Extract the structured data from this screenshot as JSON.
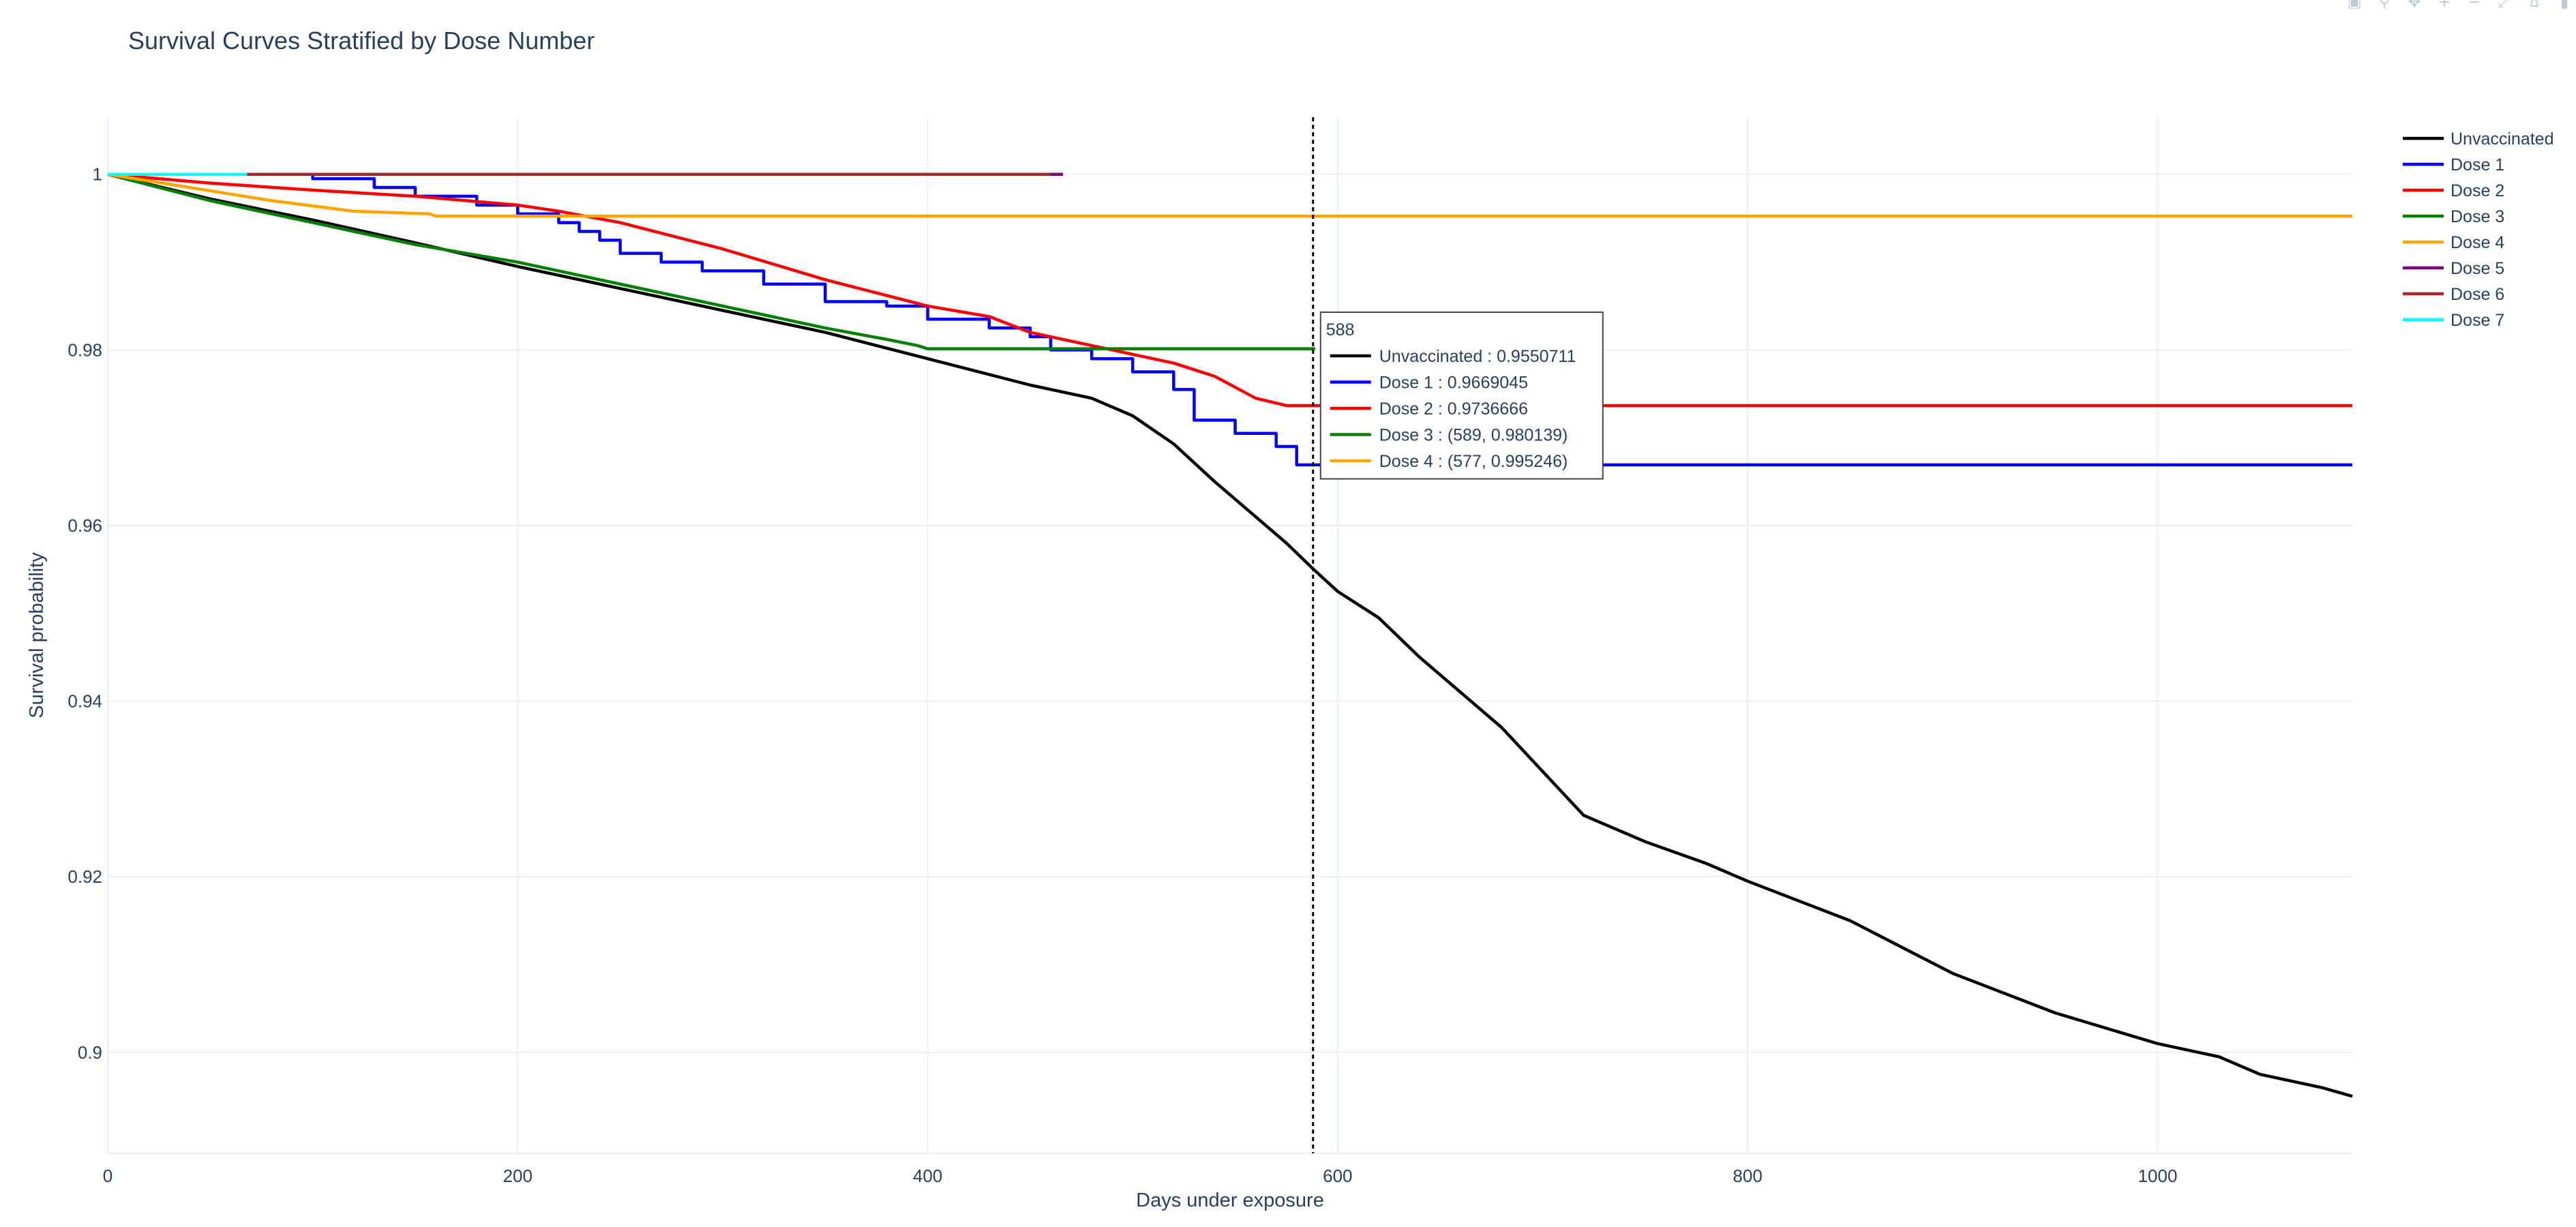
{
  "toolbar": {
    "buttons": [
      {
        "icon": "camera-icon",
        "glyph": "▣"
      },
      {
        "icon": "zoom-icon",
        "glyph": "⚲"
      },
      {
        "icon": "pan-icon",
        "glyph": "✥"
      },
      {
        "icon": "zoom-in-icon",
        "glyph": "+"
      },
      {
        "icon": "zoom-out-icon",
        "glyph": "−"
      },
      {
        "icon": "autoscale-icon",
        "glyph": "⤢"
      },
      {
        "icon": "home-icon",
        "glyph": "⌂"
      },
      {
        "icon": "plotly-logo-icon",
        "glyph": "▮"
      }
    ]
  },
  "chart_data": {
    "type": "line",
    "title": "Survival Curves Stratified by Dose Number",
    "xlabel": "Days under exposure",
    "ylabel": "Survival probability",
    "xlim": [
      0,
      1095
    ],
    "ylim": [
      0.8885,
      1.0065
    ],
    "x_ticks": [
      0,
      200,
      400,
      600,
      800,
      1000
    ],
    "y_ticks": [
      0.9,
      0.92,
      0.94,
      0.96,
      0.98,
      1
    ],
    "y_tick_labels": [
      "0.9",
      "0.92",
      "0.94",
      "0.96",
      "0.98",
      "1"
    ],
    "grid": true,
    "legend_position": "top-right",
    "series": [
      {
        "name": "Unvaccinated",
        "color": "#000000",
        "x": [
          0,
          50,
          100,
          150,
          200,
          250,
          300,
          350,
          400,
          450,
          480,
          500,
          520,
          540,
          560,
          575,
          588,
          600,
          620,
          640,
          660,
          680,
          700,
          720,
          750,
          780,
          800,
          850,
          900,
          950,
          1000,
          1030,
          1050,
          1080,
          1095
        ],
        "y": [
          1,
          0.9972,
          0.9948,
          0.9922,
          0.9895,
          0.987,
          0.9845,
          0.982,
          0.979,
          0.976,
          0.9745,
          0.9725,
          0.9693,
          0.965,
          0.961,
          0.958,
          0.9550711,
          0.9525,
          0.9495,
          0.945,
          0.941,
          0.937,
          0.932,
          0.927,
          0.924,
          0.9215,
          0.9195,
          0.915,
          0.909,
          0.9045,
          0.901,
          0.8995,
          0.8975,
          0.896,
          0.895
        ]
      },
      {
        "name": "Dose 1",
        "color": "#0000ff",
        "step": true,
        "x": [
          0,
          70,
          100,
          130,
          150,
          180,
          200,
          220,
          230,
          240,
          250,
          270,
          290,
          320,
          350,
          380,
          400,
          430,
          450,
          460,
          480,
          500,
          520,
          530,
          550,
          570,
          580,
          1095
        ],
        "y": [
          1,
          1,
          0.9995,
          0.9985,
          0.9975,
          0.9965,
          0.9955,
          0.9945,
          0.9935,
          0.9925,
          0.991,
          0.99,
          0.989,
          0.9875,
          0.9855,
          0.985,
          0.9835,
          0.9825,
          0.9815,
          0.98,
          0.979,
          0.9775,
          0.9755,
          0.972,
          0.9705,
          0.969,
          0.9669045,
          0.9669045
        ]
      },
      {
        "name": "Dose 2",
        "color": "#ff0000",
        "x": [
          0,
          50,
          100,
          150,
          200,
          220,
          250,
          300,
          350,
          400,
          430,
          450,
          480,
          500,
          520,
          540,
          560,
          575,
          1095
        ],
        "y": [
          1,
          0.999,
          0.9982,
          0.9975,
          0.9965,
          0.9958,
          0.9945,
          0.9915,
          0.988,
          0.985,
          0.9838,
          0.982,
          0.9805,
          0.9795,
          0.9785,
          0.977,
          0.9745,
          0.9736666,
          0.9736666
        ]
      },
      {
        "name": "Dose 3",
        "color": "#008000",
        "x": [
          0,
          50,
          100,
          150,
          200,
          250,
          300,
          350,
          380,
          395,
          400,
          589
        ],
        "y": [
          1,
          0.997,
          0.9945,
          0.992,
          0.99,
          0.9875,
          0.985,
          0.9825,
          0.9812,
          0.9805,
          0.980139,
          0.980139
        ]
      },
      {
        "name": "Dose 4",
        "color": "#ffa500",
        "x": [
          0,
          40,
          80,
          120,
          157,
          160,
          577,
          1095
        ],
        "y": [
          1,
          0.9985,
          0.997,
          0.9958,
          0.9955,
          0.995246,
          0.995246,
          0.995246
        ]
      },
      {
        "name": "Dose 5",
        "color": "#800080",
        "x": [
          0,
          466
        ],
        "y": [
          1,
          1
        ]
      },
      {
        "name": "Dose 6",
        "color": "#a52a2a",
        "x": [
          0,
          460
        ],
        "y": [
          1,
          1
        ]
      },
      {
        "name": "Dose 7",
        "color": "#00ffff",
        "x": [
          0,
          68
        ],
        "y": [
          1,
          1
        ]
      }
    ],
    "hover": {
      "x": 588,
      "header": "588",
      "entries": [
        {
          "label": "Unvaccinated : 0.9550711",
          "color": "#000000"
        },
        {
          "label": "Dose 1 : 0.9669045",
          "color": "#0000ff"
        },
        {
          "label": "Dose 2 : 0.9736666",
          "color": "#ff0000"
        },
        {
          "label": "Dose 3 : (589, 0.980139)",
          "color": "#008000"
        },
        {
          "label": "Dose 4 : (577, 0.995246)",
          "color": "#ffa500"
        }
      ]
    }
  }
}
